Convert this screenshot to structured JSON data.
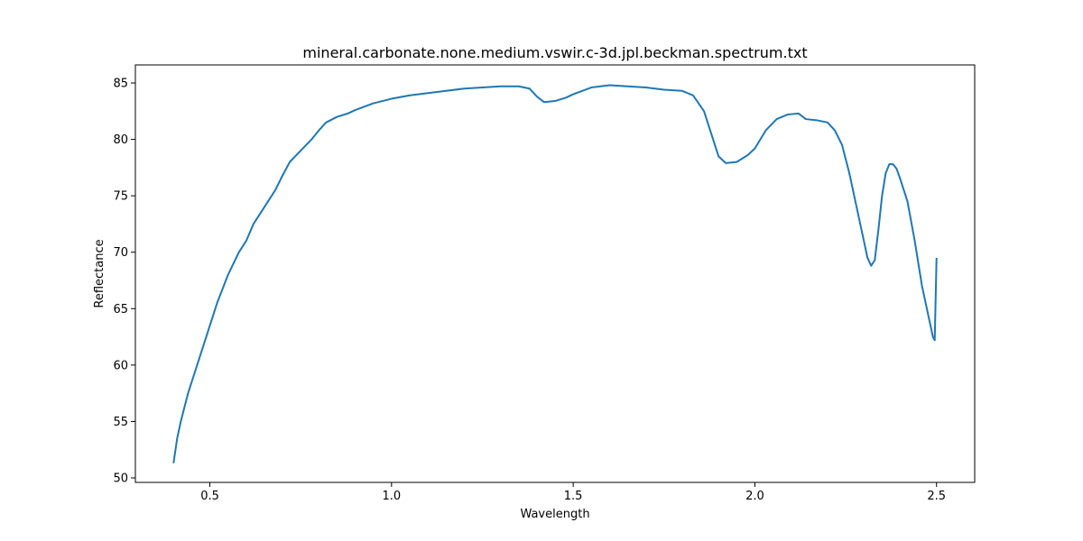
{
  "chart_data": {
    "type": "line",
    "title": "mineral.carbonate.none.medium.vswir.c-3d.jpl.beckman.spectrum.txt",
    "xlabel": "Wavelength",
    "ylabel": "Reflectance",
    "xlim": [
      0.295,
      2.605
    ],
    "ylim": [
      49.6,
      86.6
    ],
    "xticks": [
      0.5,
      1.0,
      1.5,
      2.0,
      2.5
    ],
    "xtick_labels": [
      "0.5",
      "1.0",
      "1.5",
      "2.0",
      "2.5"
    ],
    "yticks": [
      50,
      55,
      60,
      65,
      70,
      75,
      80,
      85
    ],
    "ytick_labels": [
      "50",
      "55",
      "60",
      "65",
      "70",
      "75",
      "80",
      "85"
    ],
    "grid": false,
    "series": [
      {
        "color": "#1f77b4",
        "x": [
          0.4,
          0.41,
          0.42,
          0.44,
          0.46,
          0.48,
          0.5,
          0.52,
          0.55,
          0.58,
          0.6,
          0.62,
          0.65,
          0.68,
          0.7,
          0.72,
          0.75,
          0.78,
          0.8,
          0.82,
          0.85,
          0.88,
          0.9,
          0.95,
          1.0,
          1.05,
          1.1,
          1.15,
          1.2,
          1.25,
          1.3,
          1.35,
          1.38,
          1.4,
          1.42,
          1.45,
          1.48,
          1.5,
          1.55,
          1.6,
          1.65,
          1.7,
          1.75,
          1.8,
          1.83,
          1.86,
          1.88,
          1.9,
          1.92,
          1.95,
          1.98,
          2.0,
          2.03,
          2.06,
          2.09,
          2.12,
          2.14,
          2.17,
          2.2,
          2.22,
          2.24,
          2.26,
          2.28,
          2.3,
          2.31,
          2.32,
          2.33,
          2.34,
          2.35,
          2.36,
          2.37,
          2.38,
          2.39,
          2.4,
          2.42,
          2.44,
          2.46,
          2.48,
          2.49,
          2.495,
          2.5
        ],
        "y": [
          51.3,
          53.5,
          55.0,
          57.5,
          59.5,
          61.5,
          63.5,
          65.5,
          68.0,
          70.0,
          71.0,
          72.5,
          74.0,
          75.5,
          76.8,
          78.0,
          79.0,
          80.0,
          80.8,
          81.5,
          82.0,
          82.3,
          82.6,
          83.2,
          83.6,
          83.9,
          84.1,
          84.3,
          84.5,
          84.6,
          84.7,
          84.7,
          84.5,
          83.8,
          83.3,
          83.4,
          83.7,
          84.0,
          84.6,
          84.8,
          84.7,
          84.6,
          84.4,
          84.3,
          83.9,
          82.5,
          80.5,
          78.5,
          77.9,
          78.0,
          78.6,
          79.2,
          80.8,
          81.8,
          82.2,
          82.3,
          81.8,
          81.7,
          81.5,
          80.8,
          79.5,
          77.0,
          74.0,
          71.0,
          69.5,
          68.8,
          69.3,
          72.0,
          75.0,
          77.0,
          77.8,
          77.8,
          77.4,
          76.5,
          74.5,
          71.0,
          67.0,
          64.0,
          62.5,
          62.2,
          69.5
        ]
      }
    ]
  }
}
